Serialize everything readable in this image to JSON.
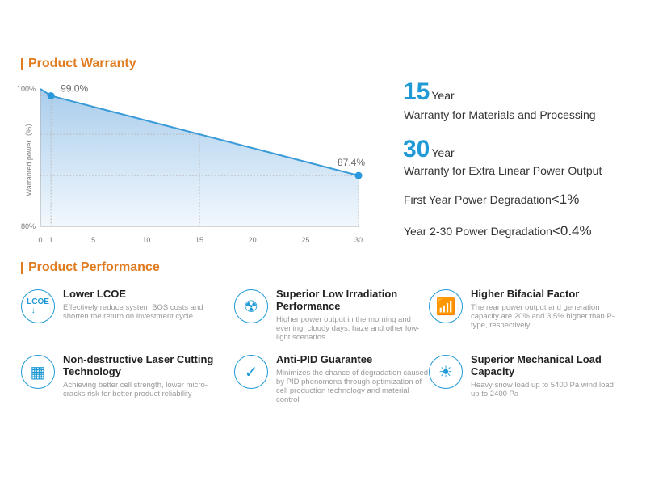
{
  "warranty": {
    "title": "Product Warranty"
  },
  "chart_data": {
    "type": "line",
    "title": "",
    "xlabel": "",
    "ylabel": "Warranted power（%）",
    "x": [
      0,
      1,
      30
    ],
    "values": [
      100,
      99.0,
      87.4
    ],
    "point_labels": [
      {
        "x": 1,
        "label": "99.0%"
      },
      {
        "x": 30,
        "label": "87.4%"
      }
    ],
    "xticks": [
      "0",
      "1",
      "5",
      "10",
      "15",
      "20",
      "25",
      "30"
    ],
    "xtick_values": [
      0,
      1,
      5,
      10,
      15,
      20,
      25,
      30
    ],
    "yticks": [
      "100%",
      "80%"
    ],
    "ytick_values": [
      100,
      80
    ],
    "xlim": [
      0,
      30
    ],
    "ylim": [
      80,
      100
    ],
    "fill": "area"
  },
  "highlights": {
    "materials": {
      "number": "15",
      "unit": "Year",
      "desc": "Warranty for Materials and Processing"
    },
    "linear": {
      "number": "30",
      "unit": "Year",
      "desc": "Warranty for Extra Linear Power Output"
    },
    "first_year": {
      "label": "First Year Power Degradation",
      "value": "<1%"
    },
    "later_years": {
      "label": "Year 2-30 Power Degradation",
      "value": "<0.4%"
    }
  },
  "performance": {
    "title": "Product Performance",
    "features": [
      {
        "icon": "lcoe-icon",
        "icon_text": "LCOE",
        "title": "Lower LCOE",
        "desc": "Effectively reduce system BOS costs and shorten the return on investment cycle"
      },
      {
        "icon": "low-irradiation-icon",
        "title": "Superior Low Irradiation Performance",
        "desc": "Higher power output in the morning and evening, cloudy days, haze and other low-light scenarios"
      },
      {
        "icon": "bar-chart-icon",
        "title": "Higher Bifacial Factor",
        "desc": "The rear power output and generation capacity are 20% and 3.5% higher than P-type, respectively"
      },
      {
        "icon": "solar-cell-icon",
        "title": "Non-destructive Laser Cutting Technology",
        "desc": "Achieving better cell strength, lower micro-cracks risk for better product reliability"
      },
      {
        "icon": "shield-check-icon",
        "title": "Anti-PID Guarantee",
        "desc": "Minimizes the chance of degradation caused by PID phenomena through optimization of cell production technology and material control"
      },
      {
        "icon": "weather-load-icon",
        "title": "Superior Mechanical Load Capacity",
        "desc": "Heavy snow load up to 5400 Pa wind load up to 2400 Pa"
      }
    ]
  },
  "colors": {
    "accent": "#e07b1f",
    "blue": "#1f9ad6"
  }
}
